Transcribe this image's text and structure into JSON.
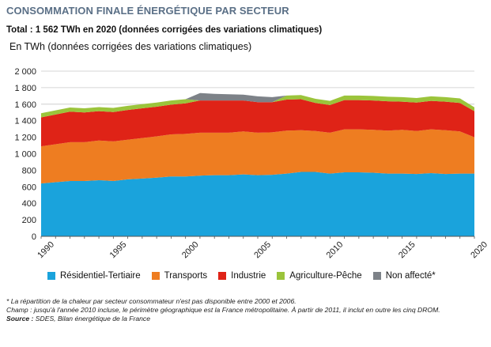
{
  "header": {
    "title": "CONSOMMATION FINALE ÉNERGÉTIQUE PAR SECTEUR",
    "subtitle": "Total : 1 562 TWh en 2020 (données corrigées des variations climatiques)",
    "unit_label": "En TWh (données corrigées des variations climatiques)"
  },
  "notes": {
    "note1": "* La répartition de la chaleur par secteur consommateur n'est pas disponible entre 2000 et 2006.",
    "note2": "Champ : jusqu'à l'année 2010 incluse, le périmètre géographique est la France métropolitaine. À partir de 2011, il inclut en outre les cinq DROM.",
    "source_label": "Source :",
    "source_text": " SDES, Bilan énergétique de la France"
  },
  "chart_data": {
    "type": "area",
    "stacked": true,
    "x": [
      1990,
      1991,
      1992,
      1993,
      1994,
      1995,
      1996,
      1997,
      1998,
      1999,
      2000,
      2001,
      2002,
      2003,
      2004,
      2005,
      2006,
      2007,
      2008,
      2009,
      2010,
      2011,
      2012,
      2013,
      2014,
      2015,
      2016,
      2017,
      2018,
      2019,
      2020
    ],
    "ylim": [
      0,
      2000
    ],
    "yticks": [
      "0",
      "200",
      "400",
      "600",
      "800",
      "1 000",
      "1 200",
      "1 400",
      "1 600",
      "1 800",
      "2 000"
    ],
    "ytick_values": [
      0,
      200,
      400,
      600,
      800,
      1000,
      1200,
      1400,
      1600,
      1800,
      2000
    ],
    "xticks": [
      1990,
      1995,
      2000,
      2005,
      2010,
      2015,
      2020
    ],
    "grid": true,
    "legend_position": "bottom",
    "series": [
      {
        "name": "Résidentiel-Tertiaire",
        "color": "#1aa3dc",
        "values": [
          640,
          655,
          670,
          670,
          680,
          670,
          690,
          700,
          710,
          725,
          725,
          735,
          740,
          740,
          750,
          740,
          745,
          760,
          780,
          780,
          760,
          775,
          775,
          770,
          760,
          760,
          755,
          765,
          755,
          760,
          760
        ]
      },
      {
        "name": "Transports",
        "color": "#ee7d21",
        "values": [
          450,
          460,
          470,
          470,
          480,
          480,
          480,
          490,
          500,
          510,
          515,
          520,
          515,
          515,
          520,
          515,
          515,
          520,
          505,
          495,
          495,
          520,
          520,
          520,
          520,
          530,
          520,
          530,
          530,
          510,
          440
        ]
      },
      {
        "name": "Industrie",
        "color": "#df2317",
        "values": [
          350,
          360,
          370,
          360,
          355,
          355,
          360,
          360,
          360,
          360,
          370,
          390,
          390,
          390,
          375,
          370,
          365,
          375,
          375,
          340,
          335,
          355,
          355,
          355,
          355,
          340,
          345,
          345,
          345,
          345,
          315
        ]
      },
      {
        "name": "Agriculture-Pêche",
        "color": "#9bc43b",
        "values": [
          50,
          50,
          50,
          50,
          50,
          50,
          50,
          50,
          50,
          50,
          50,
          0,
          0,
          0,
          0,
          0,
          0,
          50,
          50,
          50,
          50,
          55,
          55,
          55,
          55,
          55,
          55,
          55,
          55,
          55,
          47
        ]
      },
      {
        "name": "Non affecté*",
        "color": "#7d8288",
        "values": [
          0,
          0,
          0,
          0,
          0,
          0,
          0,
          0,
          0,
          0,
          0,
          90,
          80,
          75,
          70,
          70,
          60,
          0,
          0,
          0,
          0,
          0,
          0,
          0,
          0,
          0,
          0,
          0,
          0,
          0,
          0
        ]
      }
    ]
  }
}
